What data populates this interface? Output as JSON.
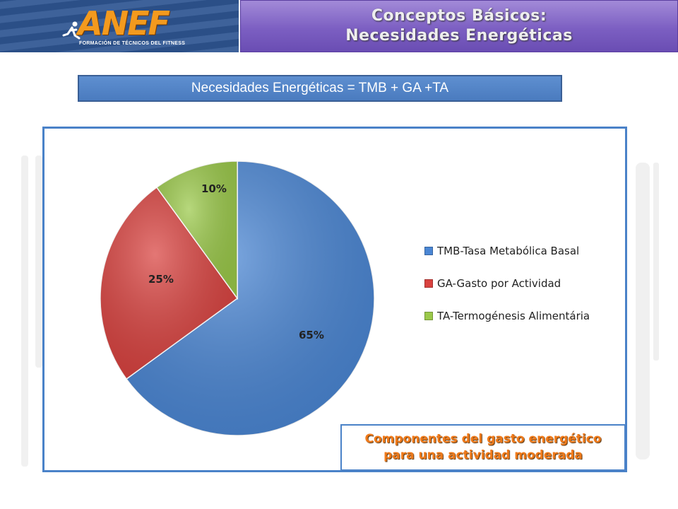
{
  "header": {
    "logo_text": "ANEF",
    "logo_subtitle": "FORMACIÓN DE TÉCNICOS DEL FITNESS",
    "title_line1": "Conceptos Básicos:",
    "title_line2": "Necesidades Energéticas",
    "banner_color": "#7c5fc2"
  },
  "formula": "Necesidades Energéticas = TMB + GA +TA",
  "chart_data": {
    "type": "pie",
    "title": "",
    "categories": [
      "TMB-Tasa Metabólica Basal",
      "GA-Gasto por Actividad",
      "TA-Termogénesis Alimentária"
    ],
    "values": [
      65,
      25,
      10
    ],
    "data_labels": [
      "65%",
      "25%",
      "10%"
    ],
    "colors": [
      "#4a86d4",
      "#d9423f",
      "#9bc94a"
    ],
    "legend_position": "right"
  },
  "caption": {
    "line1": "Componentes del gasto energético",
    "line2": "para una actividad moderada"
  }
}
